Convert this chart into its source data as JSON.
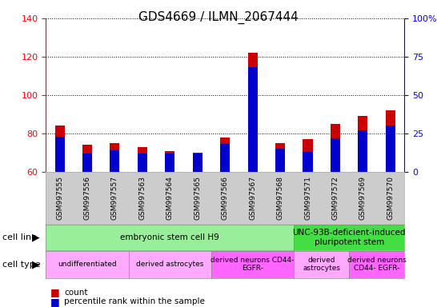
{
  "title": "GDS4669 / ILMN_2067444",
  "samples": [
    "GSM997555",
    "GSM997556",
    "GSM997557",
    "GSM997563",
    "GSM997564",
    "GSM997565",
    "GSM997566",
    "GSM997567",
    "GSM997568",
    "GSM997571",
    "GSM997572",
    "GSM997569",
    "GSM997570"
  ],
  "count_values": [
    84,
    74,
    75,
    73,
    71,
    70,
    78,
    122,
    75,
    77,
    85,
    89,
    92
  ],
  "percentile_values": [
    23,
    12,
    14,
    12,
    12,
    12,
    18,
    68,
    15,
    13,
    22,
    27,
    30
  ],
  "ylim_left": [
    60,
    140
  ],
  "ylim_right": [
    0,
    100
  ],
  "yticks_left": [
    60,
    80,
    100,
    120,
    140
  ],
  "yticks_right": [
    0,
    25,
    50,
    75,
    100
  ],
  "ytick_labels_right": [
    "0",
    "25",
    "50",
    "75",
    "100%"
  ],
  "bar_color_red": "#cc0000",
  "bar_color_blue": "#0000cc",
  "title_fontsize": 11,
  "cell_line_label": "cell line",
  "cell_type_label": "cell type",
  "cell_line_groups": [
    {
      "label": "embryonic stem cell H9",
      "start": 0,
      "end": 9,
      "color": "#99ee99"
    },
    {
      "label": "UNC-93B-deficient-induced\npluripotent stem",
      "start": 9,
      "end": 13,
      "color": "#44dd44"
    }
  ],
  "cell_type_groups": [
    {
      "label": "undifferentiated",
      "start": 0,
      "end": 3,
      "color": "#ffaaff"
    },
    {
      "label": "derived astrocytes",
      "start": 3,
      "end": 6,
      "color": "#ffaaff"
    },
    {
      "label": "derived neurons CD44-\nEGFR-",
      "start": 6,
      "end": 9,
      "color": "#ff66ff"
    },
    {
      "label": "derived\nastrocytes",
      "start": 9,
      "end": 11,
      "color": "#ffaaff"
    },
    {
      "label": "derived neurons\nCD44- EGFR-",
      "start": 11,
      "end": 13,
      "color": "#ff66ff"
    }
  ],
  "bg_color": "#ffffff",
  "tick_area_color": "#cccccc",
  "bar_width": 0.35,
  "blue_bar_width": 0.35
}
